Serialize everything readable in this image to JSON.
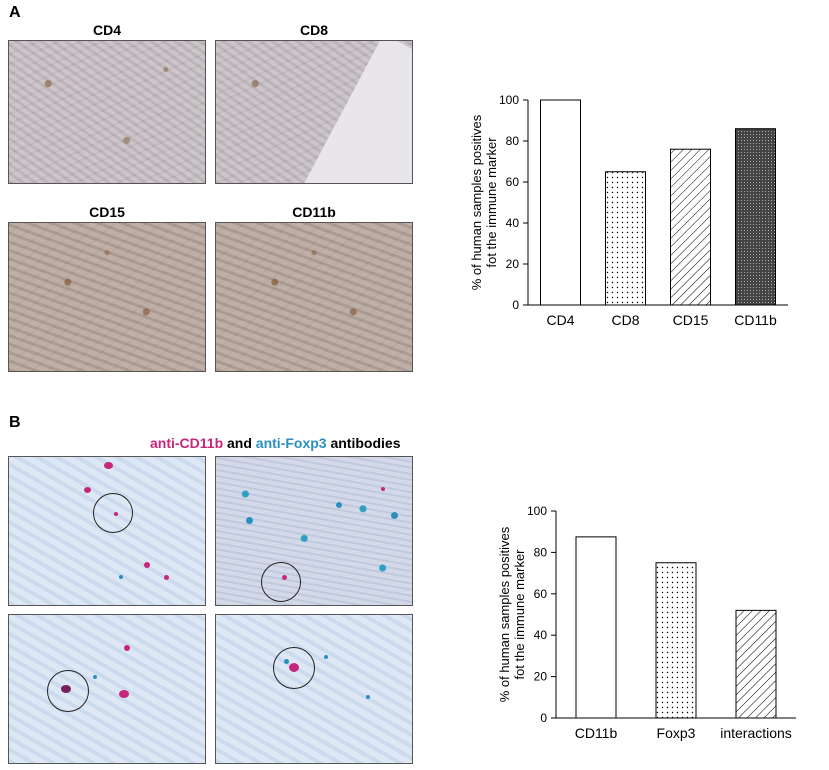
{
  "panel_a": {
    "letter": "A",
    "micrographs": [
      {
        "title": "CD4"
      },
      {
        "title": "CD8"
      },
      {
        "title": "CD15"
      },
      {
        "title": "CD11b"
      }
    ]
  },
  "panel_b": {
    "letter": "B",
    "title_parts": [
      {
        "text": "anti-CD11b",
        "color": "#c8267a"
      },
      {
        "text": " and ",
        "color": "#000000"
      },
      {
        "text": "anti-Foxp3",
        "color": "#2a8fc0"
      },
      {
        "text": " antibodies",
        "color": "#000000"
      }
    ],
    "colors": {
      "cd11b_stain": "#c8267a",
      "foxp3_stain": "#2a8fc0"
    }
  },
  "chart_data": [
    {
      "type": "bar",
      "ylabel": "% of human samples positives fot the immune marker",
      "ylabel_lines": [
        "% of human samples positives",
        "fot the immune marker"
      ],
      "categories": [
        "CD4",
        "CD8",
        "CD15",
        "CD11b"
      ],
      "values": [
        100,
        65,
        76,
        86
      ],
      "patterns": [
        "empty",
        "dots",
        "diagonal",
        "crosshatch"
      ],
      "ylim": [
        0,
        100
      ],
      "yticks": [
        0,
        20,
        40,
        60,
        80,
        100
      ],
      "grid": false
    },
    {
      "type": "bar",
      "ylabel": "% of human samples positives fot the immune marker",
      "ylabel_lines": [
        "% of human samples positives",
        "fot the immune marker"
      ],
      "categories": [
        "CD11b",
        "Foxp3",
        "interactions"
      ],
      "values": [
        87.5,
        75,
        52
      ],
      "patterns": [
        "empty",
        "dots",
        "diagonal"
      ],
      "ylim": [
        0,
        100
      ],
      "yticks": [
        0,
        20,
        40,
        60,
        80,
        100
      ],
      "grid": false
    }
  ]
}
